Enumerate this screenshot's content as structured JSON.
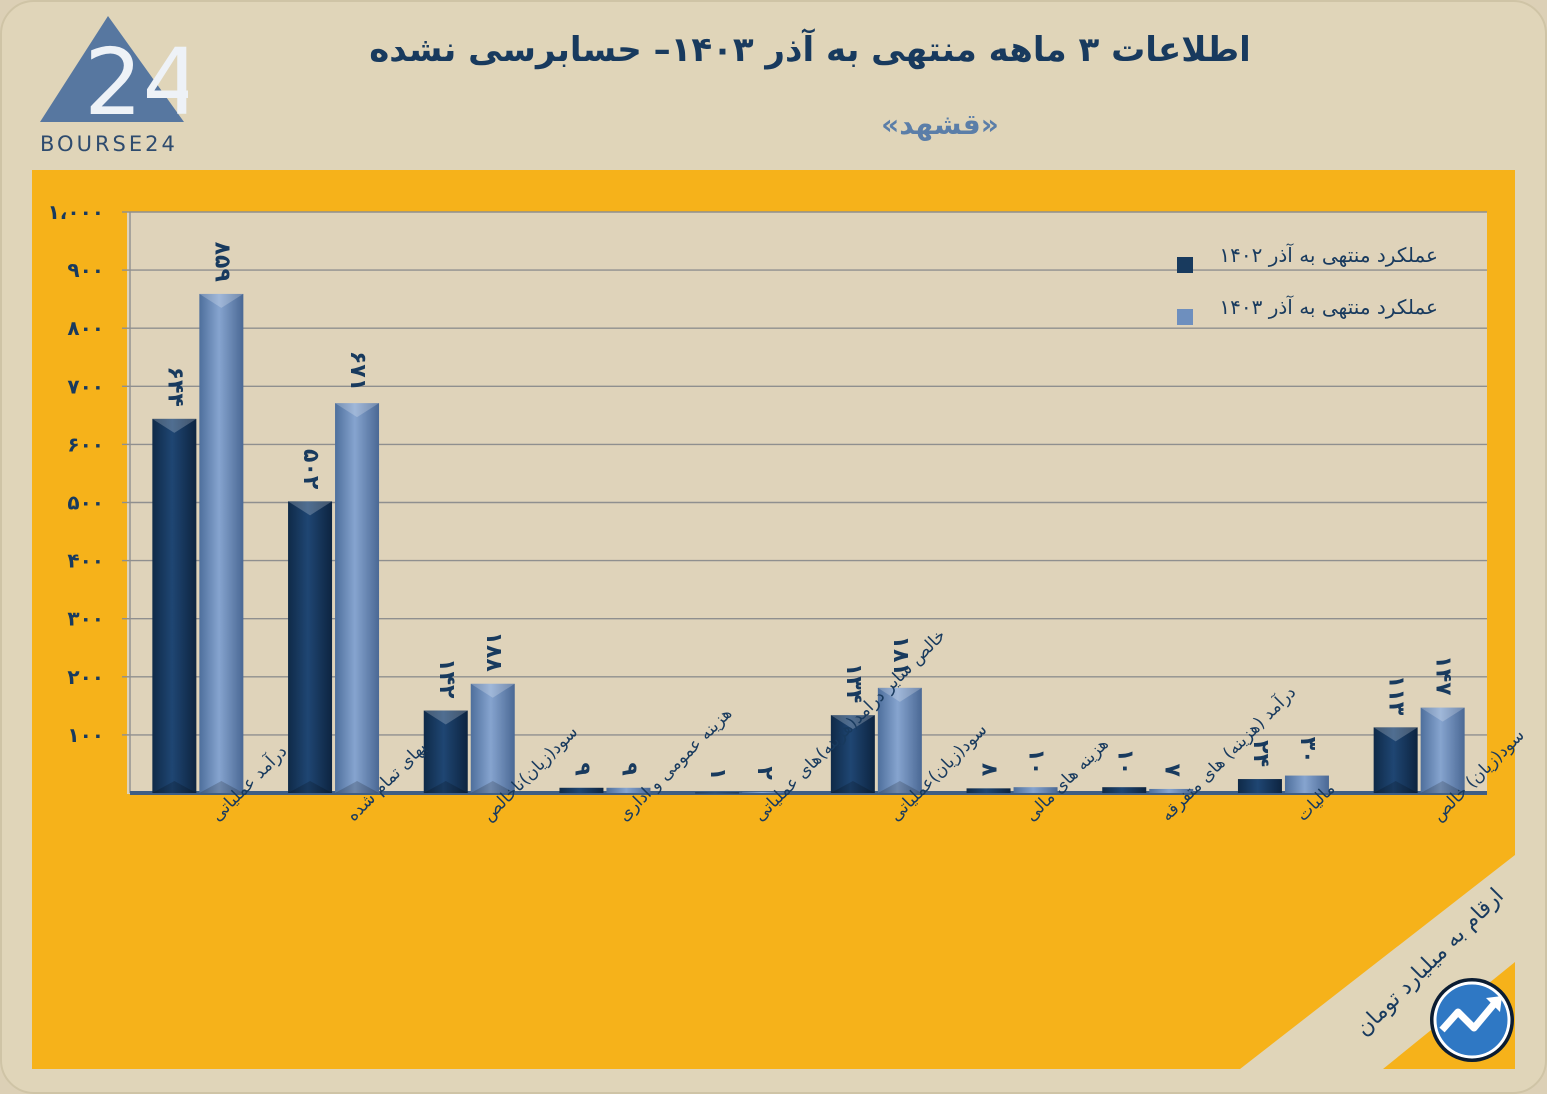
{
  "header": {
    "title": "اطلاعات ۳ ماهه منتهی به آذر ۱۴۰۳– حسابرسی نشده",
    "subtitle": "«قشهد»",
    "logo_text": "BOURSE24",
    "logo_mark": "24",
    "note": "ارقام به میلیارد تومان"
  },
  "colors": {
    "background": "#e0d5b9",
    "panel": "#f6b21a",
    "plot": "#dfd3ba",
    "series_1402": "#183a5e",
    "series_1403": "#6e8fbe",
    "text": "#183a5e"
  },
  "chart_data": {
    "type": "bar",
    "title": "اطلاعات ۳ ماهه منتهی به آذر ۱۴۰۳– حسابرسی نشده",
    "subtitle": "«قشهد»",
    "categories": [
      "درآمد عملیاتی",
      "بهای تمام شده",
      "سود(زیان)ناخالص",
      "هزینه عمومی و اداری",
      "خالص سایر درامد(هزینه)های عملیاتی",
      "سود(زیان)عملیاتی",
      "هزینه های مالی",
      "درآمد (هزینه) های متفرقه",
      "مالیات",
      "سود(زیان) خالص"
    ],
    "series": [
      {
        "name": "عملکرد منتهی به آذر ۱۴۰۲",
        "values": [
          644,
          502,
          142,
          9,
          1,
          134,
          8,
          10,
          24,
          113
        ],
        "labels": [
          "۶۴۴",
          "۵۰۲",
          "۱۴۲",
          "۹",
          "۱",
          "۱۳۴",
          "۸",
          "۱۰",
          "۲۴",
          "۱۱۳"
        ]
      },
      {
        "name": "عملکرد منتهی به آذر ۱۴۰۳",
        "values": [
          859,
          671,
          188,
          9,
          2,
          181,
          10,
          7,
          30,
          147
        ],
        "labels": [
          "۸۵۹",
          "۶۷۱",
          "۱۸۸",
          "۹",
          "۲",
          "۱۸۱",
          "۱۰",
          "۷",
          "۳۰",
          "۱۴۷"
        ]
      }
    ],
    "ylim": [
      0,
      1000
    ],
    "yticks": [
      100,
      200,
      300,
      400,
      500,
      600,
      700,
      800,
      900,
      1000
    ],
    "ytick_labels": [
      "۱۰۰",
      "۲۰۰",
      "۳۰۰",
      "۴۰۰",
      "۵۰۰",
      "۶۰۰",
      "۷۰۰",
      "۸۰۰",
      "۹۰۰",
      "۱،۰۰۰"
    ],
    "grid": true,
    "legend_position": "top-right",
    "xlabel": "",
    "ylabel": ""
  }
}
